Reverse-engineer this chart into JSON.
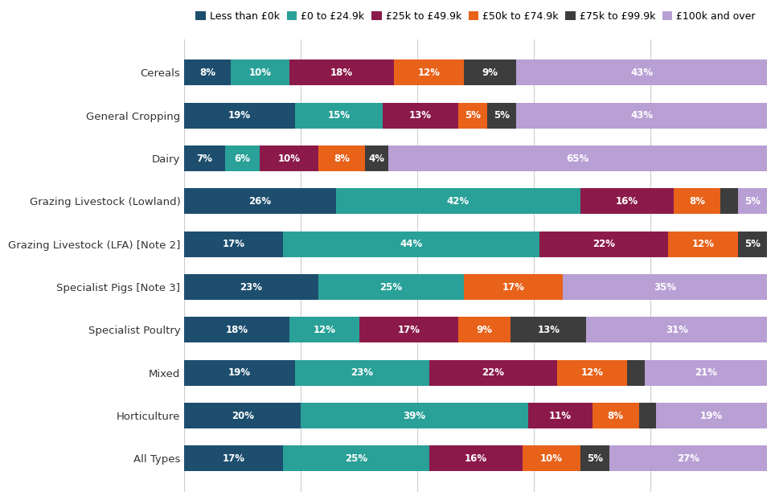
{
  "categories": [
    "Cereals",
    "General Cropping",
    "Dairy",
    "Grazing Livestock (Lowland)",
    "Grazing Livestock (LFA) [Note 2]",
    "Specialist Pigs [Note 3]",
    "Specialist Poultry",
    "Mixed",
    "Horticulture",
    "All Types"
  ],
  "legend_labels": [
    "Less than £0k",
    "£0 to £24.9k",
    "£25k to £49.9k",
    "£50k to £74.9k",
    "£75k to £99.9k",
    "£100k and over"
  ],
  "colors": [
    "#1d4e6e",
    "#2aa198",
    "#8b1a4a",
    "#e8621a",
    "#3d3d3d",
    "#b89fd4"
  ],
  "data": [
    [
      8,
      10,
      18,
      12,
      9,
      43
    ],
    [
      19,
      15,
      13,
      5,
      5,
      43
    ],
    [
      7,
      6,
      10,
      8,
      4,
      65
    ],
    [
      26,
      42,
      16,
      8,
      3,
      5
    ],
    [
      17,
      44,
      22,
      12,
      5,
      0
    ],
    [
      23,
      25,
      0,
      17,
      0,
      35
    ],
    [
      18,
      12,
      17,
      9,
      13,
      31
    ],
    [
      19,
      23,
      22,
      12,
      3,
      21
    ],
    [
      20,
      39,
      11,
      8,
      3,
      19
    ],
    [
      17,
      25,
      16,
      10,
      5,
      27
    ]
  ],
  "figsize": [
    9.6,
    6.4
  ],
  "dpi": 100,
  "background_color": "#ffffff",
  "bar_height": 0.6,
  "text_color_white": "#ffffff",
  "fontsize_legend": 9,
  "fontsize_labels": 9.5,
  "fontsize_bar_text": 8.5,
  "min_val_for_label": 4,
  "xlim": 100
}
